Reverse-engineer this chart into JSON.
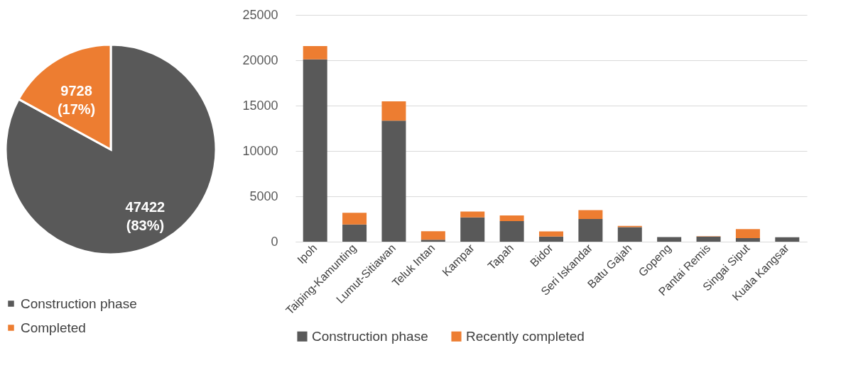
{
  "chart_data": [
    {
      "type": "pie",
      "categories": [
        "Construction phase",
        "Completed"
      ],
      "values": [
        47422,
        9728
      ],
      "colors": [
        "#595959",
        "#ed7d31"
      ],
      "value_labels": [
        "47422\n(83%)",
        "9728\n(17%)"
      ],
      "legend": "bottom"
    },
    {
      "type": "bar",
      "stacked": true,
      "categories": [
        "Ipoh",
        "Taiping-Kamunting",
        "Lumut-Sitiawan",
        "Teluk Intan",
        "Kampar",
        "Tapah",
        "Bidor",
        "Seri Iskandar",
        "Batu Gajah",
        "Gopeng",
        "Pantai Remis",
        "Singai Siput",
        "Kuala Kangsar"
      ],
      "series": [
        {
          "name": "Construction phase",
          "color": "#595959",
          "values": [
            20100,
            1890,
            13340,
            210,
            2680,
            2260,
            560,
            2500,
            1610,
            510,
            560,
            400,
            490
          ]
        },
        {
          "name": "Recently completed",
          "color": "#ed7d31",
          "values": [
            1460,
            1300,
            2120,
            950,
            650,
            630,
            580,
            980,
            120,
            0,
            50,
            980,
            0
          ]
        }
      ],
      "ylim": [
        0,
        25000
      ],
      "yticks": [
        0,
        5000,
        10000,
        15000,
        20000,
        25000
      ],
      "grid": "y",
      "legend": "bottom"
    }
  ]
}
